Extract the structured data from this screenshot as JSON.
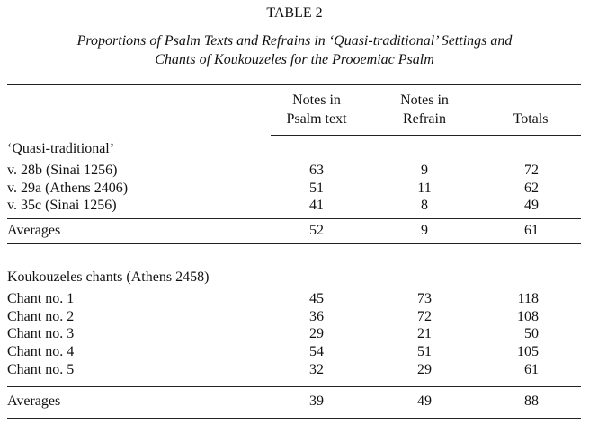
{
  "title": "TABLE 2",
  "subtitle_line1": "Proportions of Psalm Texts and Refrains in ‘Quasi-traditional’ Settings and",
  "subtitle_line2": "Chants of Koukouzeles for the Prooemiac Psalm",
  "headers": {
    "psalm_line1": "Notes in",
    "psalm_line2": "Psalm text",
    "refrain_line1": "Notes in",
    "refrain_line2": "Refrain",
    "totals": "Totals"
  },
  "groups": [
    {
      "heading": "‘Quasi-traditional’",
      "rows": [
        {
          "label": "v. 28b (Sinai 1256)",
          "psalm": "63",
          "refrain": "9",
          "total": "72"
        },
        {
          "label": "v. 29a (Athens 2406)",
          "psalm": "51",
          "refrain": "11",
          "total": "62"
        },
        {
          "label": "v. 35c (Sinai 1256)",
          "psalm": "41",
          "refrain": "8",
          "total": "49"
        }
      ],
      "averages": {
        "label": "Averages",
        "psalm": "52",
        "refrain": "9",
        "total": "61"
      }
    },
    {
      "heading": "Koukouzeles chants (Athens 2458)",
      "rows": [
        {
          "label": "Chant no. 1",
          "psalm": "45",
          "refrain": "73",
          "total": "118"
        },
        {
          "label": "Chant no. 2",
          "psalm": "36",
          "refrain": "72",
          "total": "108"
        },
        {
          "label": "Chant no. 3",
          "psalm": "29",
          "refrain": "21",
          "total": "50"
        },
        {
          "label": "Chant no. 4",
          "psalm": "54",
          "refrain": "51",
          "total": "105"
        },
        {
          "label": "Chant no. 5",
          "psalm": "32",
          "refrain": "29",
          "total": "61"
        }
      ],
      "averages": {
        "label": "Averages",
        "psalm": "39",
        "refrain": "49",
        "total": "88"
      }
    }
  ]
}
